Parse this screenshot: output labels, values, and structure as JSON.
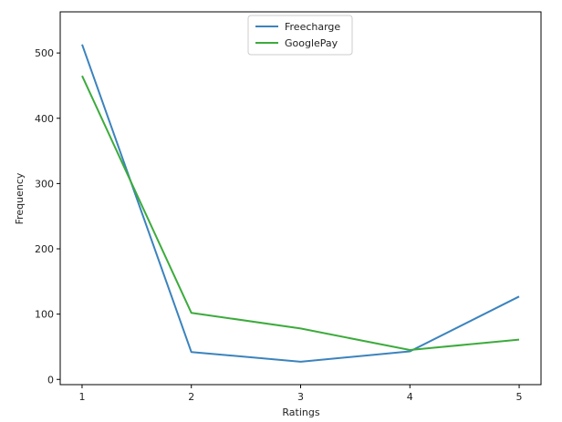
{
  "chart_data": {
    "type": "line",
    "x": [
      1,
      2,
      3,
      4,
      5
    ],
    "series": [
      {
        "name": "Freecharge",
        "values": [
          513,
          42,
          27,
          43,
          127
        ],
        "color": "#3b83bd"
      },
      {
        "name": "GooglePay",
        "values": [
          465,
          102,
          78,
          45,
          61
        ],
        "color": "#3cab3c"
      }
    ],
    "xlabel": "Ratings",
    "ylabel": "Frequency",
    "xticks": [
      1,
      2,
      3,
      4,
      5
    ],
    "yticks": [
      0,
      100,
      200,
      300,
      400,
      500
    ],
    "xlim": [
      0.8,
      5.2
    ],
    "ylim": [
      -8,
      563
    ],
    "grid": false,
    "legend_position": "top-center"
  }
}
